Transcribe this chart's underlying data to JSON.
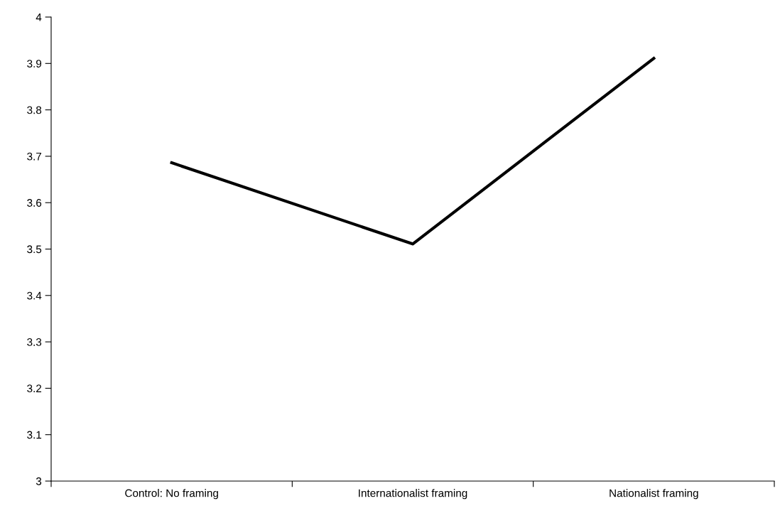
{
  "chart_data": {
    "type": "line",
    "categories": [
      "Control: No framing",
      "Internationalist framing",
      "Nationalist framing"
    ],
    "series": [
      {
        "color": "#000000",
        "values": [
          3.686,
          3.511,
          3.911
        ]
      }
    ],
    "ylim": [
      3,
      4
    ],
    "yticks": [
      3,
      3.1,
      3.2,
      3.3,
      3.4,
      3.5,
      3.6,
      3.7,
      3.8,
      3.9,
      4
    ],
    "grid": false,
    "marker": "none",
    "line_style": "solid"
  }
}
